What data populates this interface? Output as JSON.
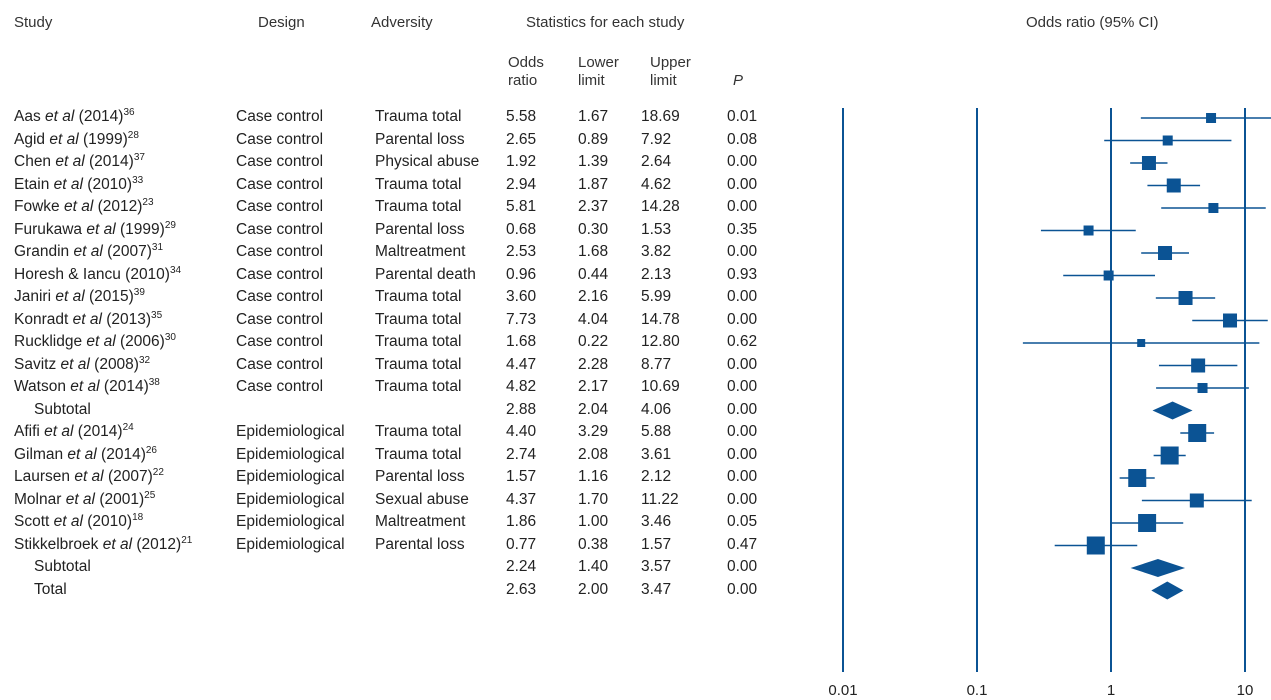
{
  "headers": {
    "study": "Study",
    "design": "Design",
    "adversity": "Adversity",
    "stats": "Statistics for each study",
    "or_plot": "Odds ratio (95% CI)",
    "odds_line1": "Odds",
    "odds_line2": "ratio",
    "lower_line1": "Lower",
    "lower_line2": "limit",
    "upper_line1": "Upper",
    "upper_line2": "limit",
    "p": "P"
  },
  "rows": [
    {
      "author": "Aas",
      "etal": "et al",
      "year": "(2014)",
      "ref": "36",
      "design": "Case control",
      "adversity": "Trauma total",
      "or": "5.58",
      "lower": "1.67",
      "upper": "18.69",
      "p": "0.01"
    },
    {
      "author": "Agid",
      "etal": "et al",
      "year": "(1999)",
      "ref": "28",
      "design": "Case control",
      "adversity": "Parental loss",
      "or": "2.65",
      "lower": "0.89",
      "upper": "7.92",
      "p": "0.08"
    },
    {
      "author": "Chen",
      "etal": "et al",
      "year": "(2014)",
      "ref": "37",
      "design": "Case control",
      "adversity": "Physical abuse",
      "or": "1.92",
      "lower": "1.39",
      "upper": "2.64",
      "p": "0.00"
    },
    {
      "author": "Etain",
      "etal": "et al",
      "year": "(2010)",
      "ref": "33",
      "design": "Case control",
      "adversity": "Trauma total",
      "or": "2.94",
      "lower": "1.87",
      "upper": "4.62",
      "p": "0.00"
    },
    {
      "author": "Fowke",
      "etal": "et al",
      "year": "(2012)",
      "ref": "23",
      "design": "Case control",
      "adversity": "Trauma total",
      "or": "5.81",
      "lower": "2.37",
      "upper": "14.28",
      "p": "0.00"
    },
    {
      "author": "Furukawa",
      "etal": "et al",
      "year": "(1999)",
      "ref": "29",
      "design": "Case control",
      "adversity": "Parental loss",
      "or": "0.68",
      "lower": "0.30",
      "upper": "1.53",
      "p": "0.35"
    },
    {
      "author": "Grandin",
      "etal": "et al",
      "year": "(2007)",
      "ref": "31",
      "design": "Case control",
      "adversity": "Maltreatment",
      "or": "2.53",
      "lower": "1.68",
      "upper": "3.82",
      "p": "0.00"
    },
    {
      "author": "Horesh & Iancu",
      "etal": "",
      "year": "(2010)",
      "ref": "34",
      "design": "Case control",
      "adversity": "Parental death",
      "or": "0.96",
      "lower": "0.44",
      "upper": "2.13",
      "p": "0.93"
    },
    {
      "author": "Janiri",
      "etal": "et al",
      "year": "(2015)",
      "ref": "39",
      "design": "Case control",
      "adversity": "Trauma total",
      "or": "3.60",
      "lower": "2.16",
      "upper": "5.99",
      "p": "0.00"
    },
    {
      "author": "Konradt",
      "etal": "et al",
      "year": "(2013)",
      "ref": "35",
      "design": "Case control",
      "adversity": "Trauma total",
      "or": "7.73",
      "lower": "4.04",
      "upper": "14.78",
      "p": "0.00"
    },
    {
      "author": "Rucklidge",
      "etal": "et al",
      "year": "(2006)",
      "ref": "30",
      "design": "Case control",
      "adversity": "Trauma total",
      "or": "1.68",
      "lower": "0.22",
      "upper": "12.80",
      "p": "0.62"
    },
    {
      "author": "Savitz",
      "etal": "et al",
      "year": "(2008)",
      "ref": "32",
      "design": "Case control",
      "adversity": "Trauma total",
      "or": "4.47",
      "lower": "2.28",
      "upper": "8.77",
      "p": "0.00"
    },
    {
      "author": "Watson",
      "etal": "et al",
      "year": "(2014)",
      "ref": "38",
      "design": "Case control",
      "adversity": "Trauma total",
      "or": "4.82",
      "lower": "2.17",
      "upper": "10.69",
      "p": "0.00"
    },
    {
      "label": "Subtotal",
      "or": "2.88",
      "lower": "2.04",
      "upper": "4.06",
      "p": "0.00"
    },
    {
      "author": "Afifi",
      "etal": "et al",
      "year": "(2014)",
      "ref": "24",
      "design": "Epidemiological",
      "adversity": "Trauma total",
      "or": "4.40",
      "lower": "3.29",
      "upper": "5.88",
      "p": "0.00"
    },
    {
      "author": "Gilman",
      "etal": "et al",
      "year": "(2014)",
      "ref": "26",
      "design": "Epidemiological",
      "adversity": "Trauma total",
      "or": "2.74",
      "lower": "2.08",
      "upper": "3.61",
      "p": "0.00"
    },
    {
      "author": "Laursen",
      "etal": "et al",
      "year": "(2007)",
      "ref": "22",
      "design": "Epidemiological",
      "adversity": "Parental loss",
      "or": "1.57",
      "lower": "1.16",
      "upper": "2.12",
      "p": "0.00"
    },
    {
      "author": "Molnar",
      "etal": "et al",
      "year": "(2001)",
      "ref": "25",
      "design": "Epidemiological",
      "adversity": "Sexual abuse",
      "or": "4.37",
      "lower": "1.70",
      "upper": "11.22",
      "p": "0.00"
    },
    {
      "author": "Scott",
      "etal": "et al",
      "year": "(2010)",
      "ref": "18",
      "design": "Epidemiological",
      "adversity": "Maltreatment",
      "or": "1.86",
      "lower": "1.00",
      "upper": "3.46",
      "p": "0.05"
    },
    {
      "author": "Stikkelbroek",
      "etal": "et al",
      "year": "(2012)",
      "ref": "21",
      "design": "Epidemiological",
      "adversity": "Parental loss",
      "or": "0.77",
      "lower": "0.38",
      "upper": "1.57",
      "p": "0.47"
    },
    {
      "label": "Subtotal",
      "or": "2.24",
      "lower": "1.40",
      "upper": "3.57",
      "p": "0.00"
    },
    {
      "label": "Total",
      "or": "2.63",
      "lower": "2.00",
      "upper": "3.47",
      "p": "0.00"
    }
  ],
  "chart_data": {
    "type": "forest",
    "x_scale": "log",
    "x_ticks": [
      "0.01",
      "0.1",
      "1",
      "10"
    ],
    "x_tick_values": [
      0.01,
      0.1,
      1,
      10
    ],
    "reference_lines": [
      0.01,
      0.1,
      1,
      10
    ],
    "points": [
      {
        "or": 5.58,
        "lo": 1.67,
        "hi": 18.69,
        "kind": "study",
        "w": 1
      },
      {
        "or": 2.65,
        "lo": 0.89,
        "hi": 7.92,
        "kind": "study",
        "w": 1
      },
      {
        "or": 1.92,
        "lo": 1.39,
        "hi": 2.64,
        "kind": "study",
        "w": 2
      },
      {
        "or": 2.94,
        "lo": 1.87,
        "hi": 4.62,
        "kind": "study",
        "w": 2
      },
      {
        "or": 5.81,
        "lo": 2.37,
        "hi": 14.28,
        "kind": "study",
        "w": 1
      },
      {
        "or": 0.68,
        "lo": 0.3,
        "hi": 1.53,
        "kind": "study",
        "w": 1
      },
      {
        "or": 2.53,
        "lo": 1.68,
        "hi": 3.82,
        "kind": "study",
        "w": 2
      },
      {
        "or": 0.96,
        "lo": 0.44,
        "hi": 2.13,
        "kind": "study",
        "w": 1
      },
      {
        "or": 3.6,
        "lo": 2.16,
        "hi": 5.99,
        "kind": "study",
        "w": 2
      },
      {
        "or": 7.73,
        "lo": 4.04,
        "hi": 14.78,
        "kind": "study",
        "w": 2
      },
      {
        "or": 1.68,
        "lo": 0.22,
        "hi": 12.8,
        "kind": "study",
        "w": 0
      },
      {
        "or": 4.47,
        "lo": 2.28,
        "hi": 8.77,
        "kind": "study",
        "w": 2
      },
      {
        "or": 4.82,
        "lo": 2.17,
        "hi": 10.69,
        "kind": "study",
        "w": 1
      },
      {
        "or": 2.88,
        "lo": 2.04,
        "hi": 4.06,
        "kind": "diamond"
      },
      {
        "or": 4.4,
        "lo": 3.29,
        "hi": 5.88,
        "kind": "study",
        "w": 3
      },
      {
        "or": 2.74,
        "lo": 2.08,
        "hi": 3.61,
        "kind": "study",
        "w": 3
      },
      {
        "or": 1.57,
        "lo": 1.16,
        "hi": 2.12,
        "kind": "study",
        "w": 3
      },
      {
        "or": 4.37,
        "lo": 1.7,
        "hi": 11.22,
        "kind": "study",
        "w": 2
      },
      {
        "or": 1.86,
        "lo": 1.0,
        "hi": 3.46,
        "kind": "study",
        "w": 3
      },
      {
        "or": 0.77,
        "lo": 0.38,
        "hi": 1.57,
        "kind": "study",
        "w": 3
      },
      {
        "or": 2.24,
        "lo": 1.4,
        "hi": 3.57,
        "kind": "diamond"
      },
      {
        "or": 2.63,
        "lo": 2.0,
        "hi": 3.47,
        "kind": "diamond"
      }
    ],
    "color": "#0b5394"
  }
}
